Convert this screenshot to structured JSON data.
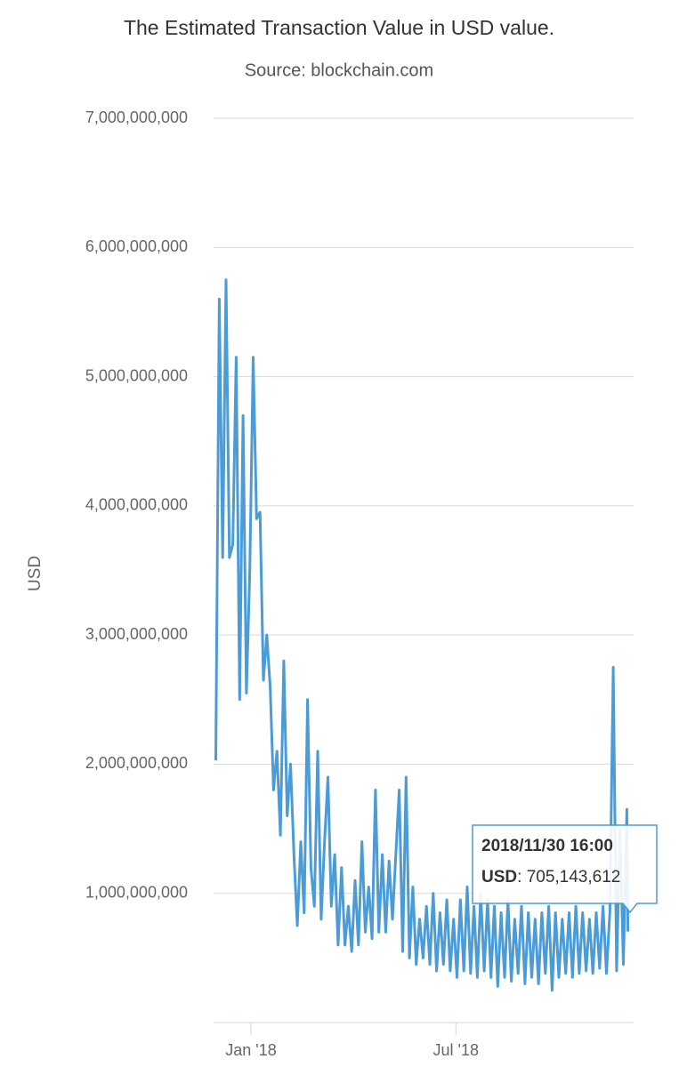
{
  "chart_data": {
    "type": "line",
    "title": "The Estimated Transaction Value in USD value.",
    "subtitle": "Source: blockchain.com",
    "y_label": "USD",
    "ylim": [
      0,
      7000000000
    ],
    "yticks": [
      {
        "value": 1000000000,
        "label": "1,000,000,000"
      },
      {
        "value": 2000000000,
        "label": "2,000,000,000"
      },
      {
        "value": 3000000000,
        "label": "3,000,000,000"
      },
      {
        "value": 4000000000,
        "label": "4,000,000,000"
      },
      {
        "value": 5000000000,
        "label": "5,000,000,000"
      },
      {
        "value": 6000000000,
        "label": "6,000,000,000"
      },
      {
        "value": 7000000000,
        "label": "7,000,000,000"
      }
    ],
    "xlim": [
      "2017-11-29",
      "2018-12-05"
    ],
    "xticks": [
      {
        "value": "2018-01-01",
        "label": "Jan '18"
      },
      {
        "value": "2018-07-01",
        "label": "Jul '18"
      }
    ],
    "grid": true,
    "series": [
      {
        "name": "USD",
        "color": "#4a9bd6",
        "x": [
          "2017-12-01",
          "2017-12-04",
          "2017-12-07",
          "2017-12-10",
          "2017-12-13",
          "2017-12-16",
          "2017-12-19",
          "2017-12-22",
          "2017-12-25",
          "2017-12-28",
          "2017-12-31",
          "2018-01-03",
          "2018-01-06",
          "2018-01-09",
          "2018-01-12",
          "2018-01-15",
          "2018-01-18",
          "2018-01-21",
          "2018-01-24",
          "2018-01-27",
          "2018-01-30",
          "2018-02-02",
          "2018-02-05",
          "2018-02-08",
          "2018-02-11",
          "2018-02-14",
          "2018-02-17",
          "2018-02-20",
          "2018-02-23",
          "2018-02-26",
          "2018-03-01",
          "2018-03-04",
          "2018-03-07",
          "2018-03-10",
          "2018-03-13",
          "2018-03-16",
          "2018-03-19",
          "2018-03-22",
          "2018-03-25",
          "2018-03-28",
          "2018-03-31",
          "2018-04-03",
          "2018-04-06",
          "2018-04-09",
          "2018-04-12",
          "2018-04-15",
          "2018-04-18",
          "2018-04-21",
          "2018-04-24",
          "2018-04-27",
          "2018-04-30",
          "2018-05-03",
          "2018-05-06",
          "2018-05-09",
          "2018-05-12",
          "2018-05-15",
          "2018-05-18",
          "2018-05-21",
          "2018-05-24",
          "2018-05-27",
          "2018-05-30",
          "2018-06-02",
          "2018-06-05",
          "2018-06-08",
          "2018-06-11",
          "2018-06-14",
          "2018-06-17",
          "2018-06-20",
          "2018-06-23",
          "2018-06-26",
          "2018-06-29",
          "2018-07-02",
          "2018-07-05",
          "2018-07-08",
          "2018-07-11",
          "2018-07-14",
          "2018-07-17",
          "2018-07-20",
          "2018-07-23",
          "2018-07-26",
          "2018-07-29",
          "2018-08-01",
          "2018-08-04",
          "2018-08-07",
          "2018-08-10",
          "2018-08-13",
          "2018-08-16",
          "2018-08-19",
          "2018-08-22",
          "2018-08-25",
          "2018-08-28",
          "2018-08-31",
          "2018-09-03",
          "2018-09-06",
          "2018-09-09",
          "2018-09-12",
          "2018-09-15",
          "2018-09-18",
          "2018-09-21",
          "2018-09-24",
          "2018-09-27",
          "2018-09-30",
          "2018-10-03",
          "2018-10-06",
          "2018-10-09",
          "2018-10-12",
          "2018-10-15",
          "2018-10-18",
          "2018-10-21",
          "2018-10-24",
          "2018-10-27",
          "2018-10-30",
          "2018-11-02",
          "2018-11-05",
          "2018-11-08",
          "2018-11-11",
          "2018-11-14",
          "2018-11-17",
          "2018-11-20",
          "2018-11-23",
          "2018-11-26",
          "2018-11-29",
          "2018-11-30"
        ],
        "values": [
          2030000000,
          5600000000,
          3600000000,
          5750000000,
          3600000000,
          3700000000,
          5150000000,
          2500000000,
          4700000000,
          2550000000,
          3500000000,
          5150000000,
          3900000000,
          3950000000,
          2650000000,
          3000000000,
          2600000000,
          1800000000,
          2100000000,
          1450000000,
          2800000000,
          1600000000,
          2000000000,
          1300000000,
          750000000,
          1400000000,
          850000000,
          2500000000,
          1200000000,
          900000000,
          2100000000,
          800000000,
          1400000000,
          1900000000,
          900000000,
          1300000000,
          600000000,
          1200000000,
          600000000,
          900000000,
          550000000,
          1100000000,
          600000000,
          1400000000,
          700000000,
          1050000000,
          650000000,
          1800000000,
          700000000,
          1300000000,
          700000000,
          1250000000,
          800000000,
          1300000000,
          1800000000,
          550000000,
          1900000000,
          500000000,
          1050000000,
          450000000,
          800000000,
          500000000,
          900000000,
          450000000,
          1000000000,
          400000000,
          850000000,
          450000000,
          950000000,
          400000000,
          800000000,
          350000000,
          950000000,
          400000000,
          1050000000,
          380000000,
          900000000,
          350000000,
          1000000000,
          400000000,
          950000000,
          350000000,
          900000000,
          280000000,
          850000000,
          350000000,
          950000000,
          320000000,
          800000000,
          380000000,
          900000000,
          300000000,
          850000000,
          350000000,
          800000000,
          300000000,
          850000000,
          380000000,
          900000000,
          250000000,
          850000000,
          350000000,
          800000000,
          380000000,
          850000000,
          350000000,
          900000000,
          380000000,
          850000000,
          400000000,
          800000000,
          380000000,
          850000000,
          420000000,
          900000000,
          380000000,
          850000000,
          2750000000,
          400000000,
          1500000000,
          450000000,
          1650000000,
          705143612
        ]
      }
    ],
    "tooltip": {
      "title": "2018/11/30 16:00",
      "series": "USD",
      "value": "705,143,612"
    }
  }
}
